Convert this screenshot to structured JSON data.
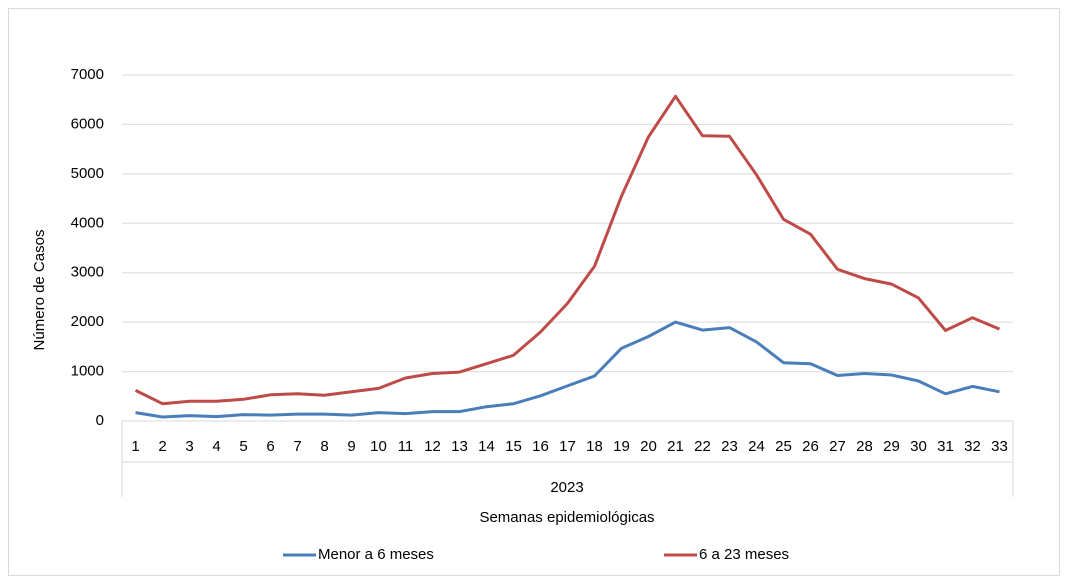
{
  "chart_data": {
    "type": "line",
    "y_label": "Número de Casos",
    "x_label": "Semanas epidemiológicas",
    "group_label": "2023",
    "categories": [
      "1",
      "2",
      "3",
      "4",
      "5",
      "6",
      "7",
      "8",
      "9",
      "10",
      "11",
      "12",
      "13",
      "14",
      "15",
      "16",
      "17",
      "18",
      "19",
      "20",
      "21",
      "22",
      "23",
      "24",
      "25",
      "26",
      "27",
      "28",
      "29",
      "30",
      "31",
      "32",
      "33"
    ],
    "series": [
      {
        "name": "Menor a 6 meses",
        "color": "#4a7ebb",
        "values": [
          170,
          80,
          110,
          90,
          130,
          120,
          140,
          140,
          120,
          170,
          150,
          190,
          190,
          290,
          350,
          510,
          710,
          910,
          1470,
          1710,
          2000,
          1840,
          1890,
          1600,
          1180,
          1160,
          920,
          960,
          930,
          810,
          550,
          700,
          590
        ]
      },
      {
        "name": "6 a 23 meses",
        "color": "#be4b48",
        "values": [
          620,
          350,
          400,
          400,
          440,
          530,
          550,
          520,
          590,
          660,
          870,
          960,
          990,
          1160,
          1330,
          1800,
          2380,
          3130,
          4550,
          5750,
          6570,
          5770,
          5760,
          4980,
          4080,
          3780,
          3070,
          2880,
          2770,
          2490,
          1830,
          2090,
          1860
        ]
      }
    ],
    "ylim": [
      0,
      7000
    ],
    "yticks": [
      0,
      1000,
      2000,
      3000,
      4000,
      5000,
      6000,
      7000
    ],
    "grid": true,
    "legend": "bottom"
  }
}
